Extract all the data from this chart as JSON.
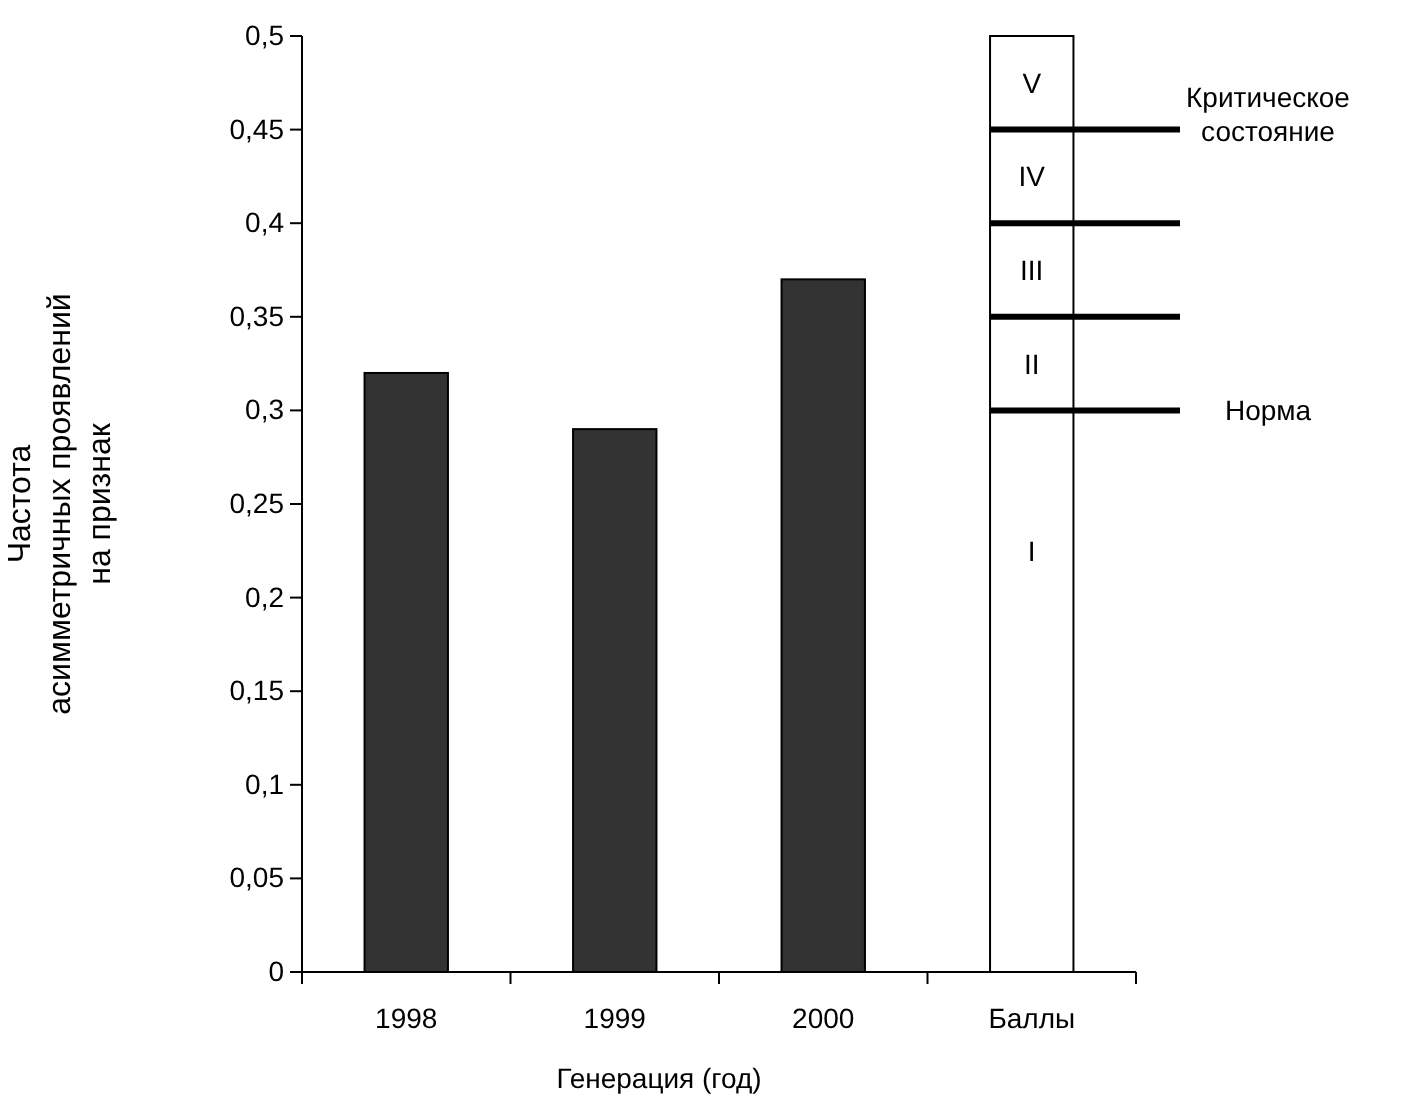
{
  "chart_data": {
    "type": "bar",
    "xlabel": "Генерация (год)",
    "ylabel": "Частота\nасимметричных проявлений\nна признак",
    "categories": [
      "1998",
      "1999",
      "2000",
      "Баллы"
    ],
    "values": [
      0.32,
      0.29,
      0.37,
      0.5
    ],
    "colors": [
      "#333333",
      "#333333",
      "#333333",
      "#ffffff"
    ],
    "ylim": [
      0,
      0.5
    ],
    "yticks": [
      {
        "value": 0,
        "label": "0"
      },
      {
        "value": 0.05,
        "label": "0,05"
      },
      {
        "value": 0.1,
        "label": "0,1"
      },
      {
        "value": 0.15,
        "label": "0,15"
      },
      {
        "value": 0.2,
        "label": "0,2"
      },
      {
        "value": 0.25,
        "label": "0,25"
      },
      {
        "value": 0.3,
        "label": "0,3"
      },
      {
        "value": 0.35,
        "label": "0,35"
      },
      {
        "value": 0.4,
        "label": "0,4"
      },
      {
        "value": 0.45,
        "label": "0,45"
      },
      {
        "value": 0.5,
        "label": "0,5"
      }
    ],
    "ref_lines": [
      {
        "axis": "y",
        "value": 0.3,
        "label": "Норма",
        "color": "#000000"
      },
      {
        "axis": "y",
        "value": 0.35,
        "label": null,
        "color": "#000000"
      },
      {
        "axis": "y",
        "value": 0.4,
        "label": null,
        "color": "#000000"
      },
      {
        "axis": "y",
        "value": 0.45,
        "label": "Критическое\nсостояние",
        "color": "#000000"
      }
    ],
    "annotations": [
      "I",
      "II",
      "III",
      "IV",
      "V"
    ],
    "grid": false
  }
}
